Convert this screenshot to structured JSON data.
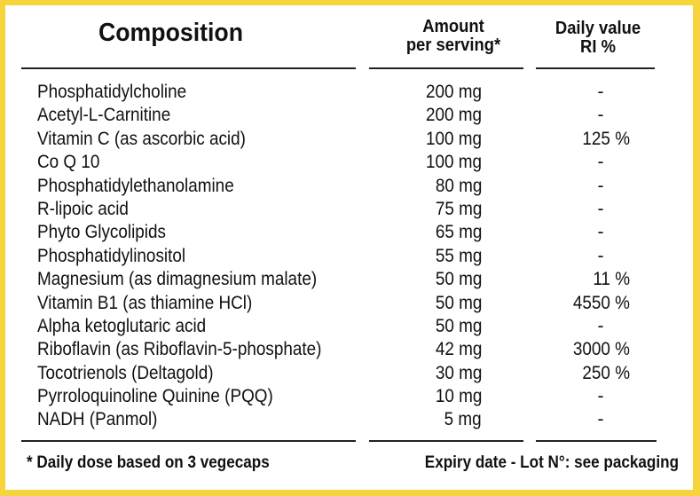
{
  "header": {
    "composition": "Composition",
    "amount_line1": "Amount",
    "amount_line2": "per serving*",
    "daily_line1": "Daily value",
    "daily_line2": "RI %"
  },
  "rows": [
    {
      "name": "Phosphatidylcholine",
      "amount": "200 mg",
      "daily": "-"
    },
    {
      "name": "Acetyl-L-Carnitine",
      "amount": "200 mg",
      "daily": "-"
    },
    {
      "name": "Vitamin C (as ascorbic acid)",
      "amount": "100 mg",
      "daily": "125 %"
    },
    {
      "name": "Co Q 10",
      "amount": "100 mg",
      "daily": "-"
    },
    {
      "name": "Phosphatidylethanolamine",
      "amount": "80 mg",
      "daily": "-"
    },
    {
      "name": "R-lipoic acid",
      "amount": "75 mg",
      "daily": "-"
    },
    {
      "name": "Phyto Glycolipids",
      "amount": "65 mg",
      "daily": "-"
    },
    {
      "name": "Phosphatidylinositol",
      "amount": "55 mg",
      "daily": "-"
    },
    {
      "name": "Magnesium (as dimagnesium malate)",
      "amount": "50 mg",
      "daily": "11 %"
    },
    {
      "name": "Vitamin B1 (as thiamine HCl)",
      "amount": "50 mg",
      "daily": "4550 %"
    },
    {
      "name": "Alpha ketoglutaric acid",
      "amount": "50 mg",
      "daily": "-"
    },
    {
      "name": "Riboflavin (as Riboflavin-5-phosphate)",
      "amount": "42 mg",
      "daily": "3000 %"
    },
    {
      "name": "Tocotrienols (Deltagold)",
      "amount": "30 mg",
      "daily": "250 %"
    },
    {
      "name": "Pyrroloquinoline Quinine (PQQ)",
      "amount": "10 mg",
      "daily": "-"
    },
    {
      "name": "NADH (Panmol)",
      "amount": "5 mg",
      "daily": "-"
    }
  ],
  "footer": {
    "note": "* Daily dose based on 3 vegecaps",
    "expiry": "Expiry date - Lot N°: see packaging"
  },
  "colors": {
    "border": "#f6d43c",
    "background": "#ffffff",
    "text": "#111111"
  }
}
